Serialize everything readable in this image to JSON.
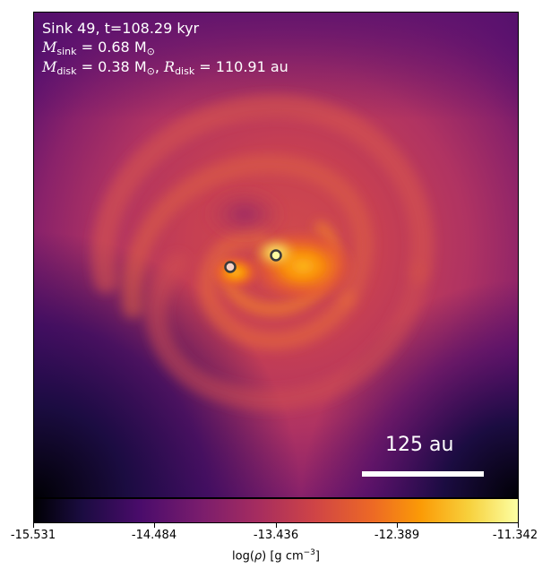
{
  "annotation": {
    "line1": "Sink 49, t=108.29 kyr",
    "m_sink_symbol": "M",
    "m_sink_sub": "sink",
    "m_sink_value": " = 0.68 M",
    "m_sink_unit_sub": "⊙",
    "m_disk_symbol": "M",
    "m_disk_sub": "disk",
    "m_disk_value": " = 0.38 M",
    "m_disk_unit_sub": "⊙",
    "r_disk_symbol": "R",
    "r_disk_sub": "disk",
    "r_disk_value": " = 110.91 au"
  },
  "scale_bar": {
    "label": "125 au"
  },
  "sinks": [
    {
      "name": "sink-secondary",
      "fill": "#f6d2c6"
    },
    {
      "name": "sink-primary",
      "fill": "#fffaa0"
    }
  ],
  "colorbar": {
    "colormap": "inferno",
    "ticks": [
      "-15.531",
      "-14.484",
      "-13.436",
      "-12.389",
      "-11.342"
    ],
    "label_prefix": "log(",
    "label_rho": "ρ",
    "label_suffix": ") [g cm",
    "label_exp": "−3",
    "label_end": "]"
  },
  "colors": {
    "black": "#000004",
    "deep_purple": "#320a5e",
    "purple": "#5c126e",
    "magenta": "#8a226a",
    "rose": "#b73759",
    "orange_red": "#e05536",
    "orange": "#f98c0a",
    "yellow": "#f3e35b",
    "pale_yellow": "#fcffa4"
  }
}
